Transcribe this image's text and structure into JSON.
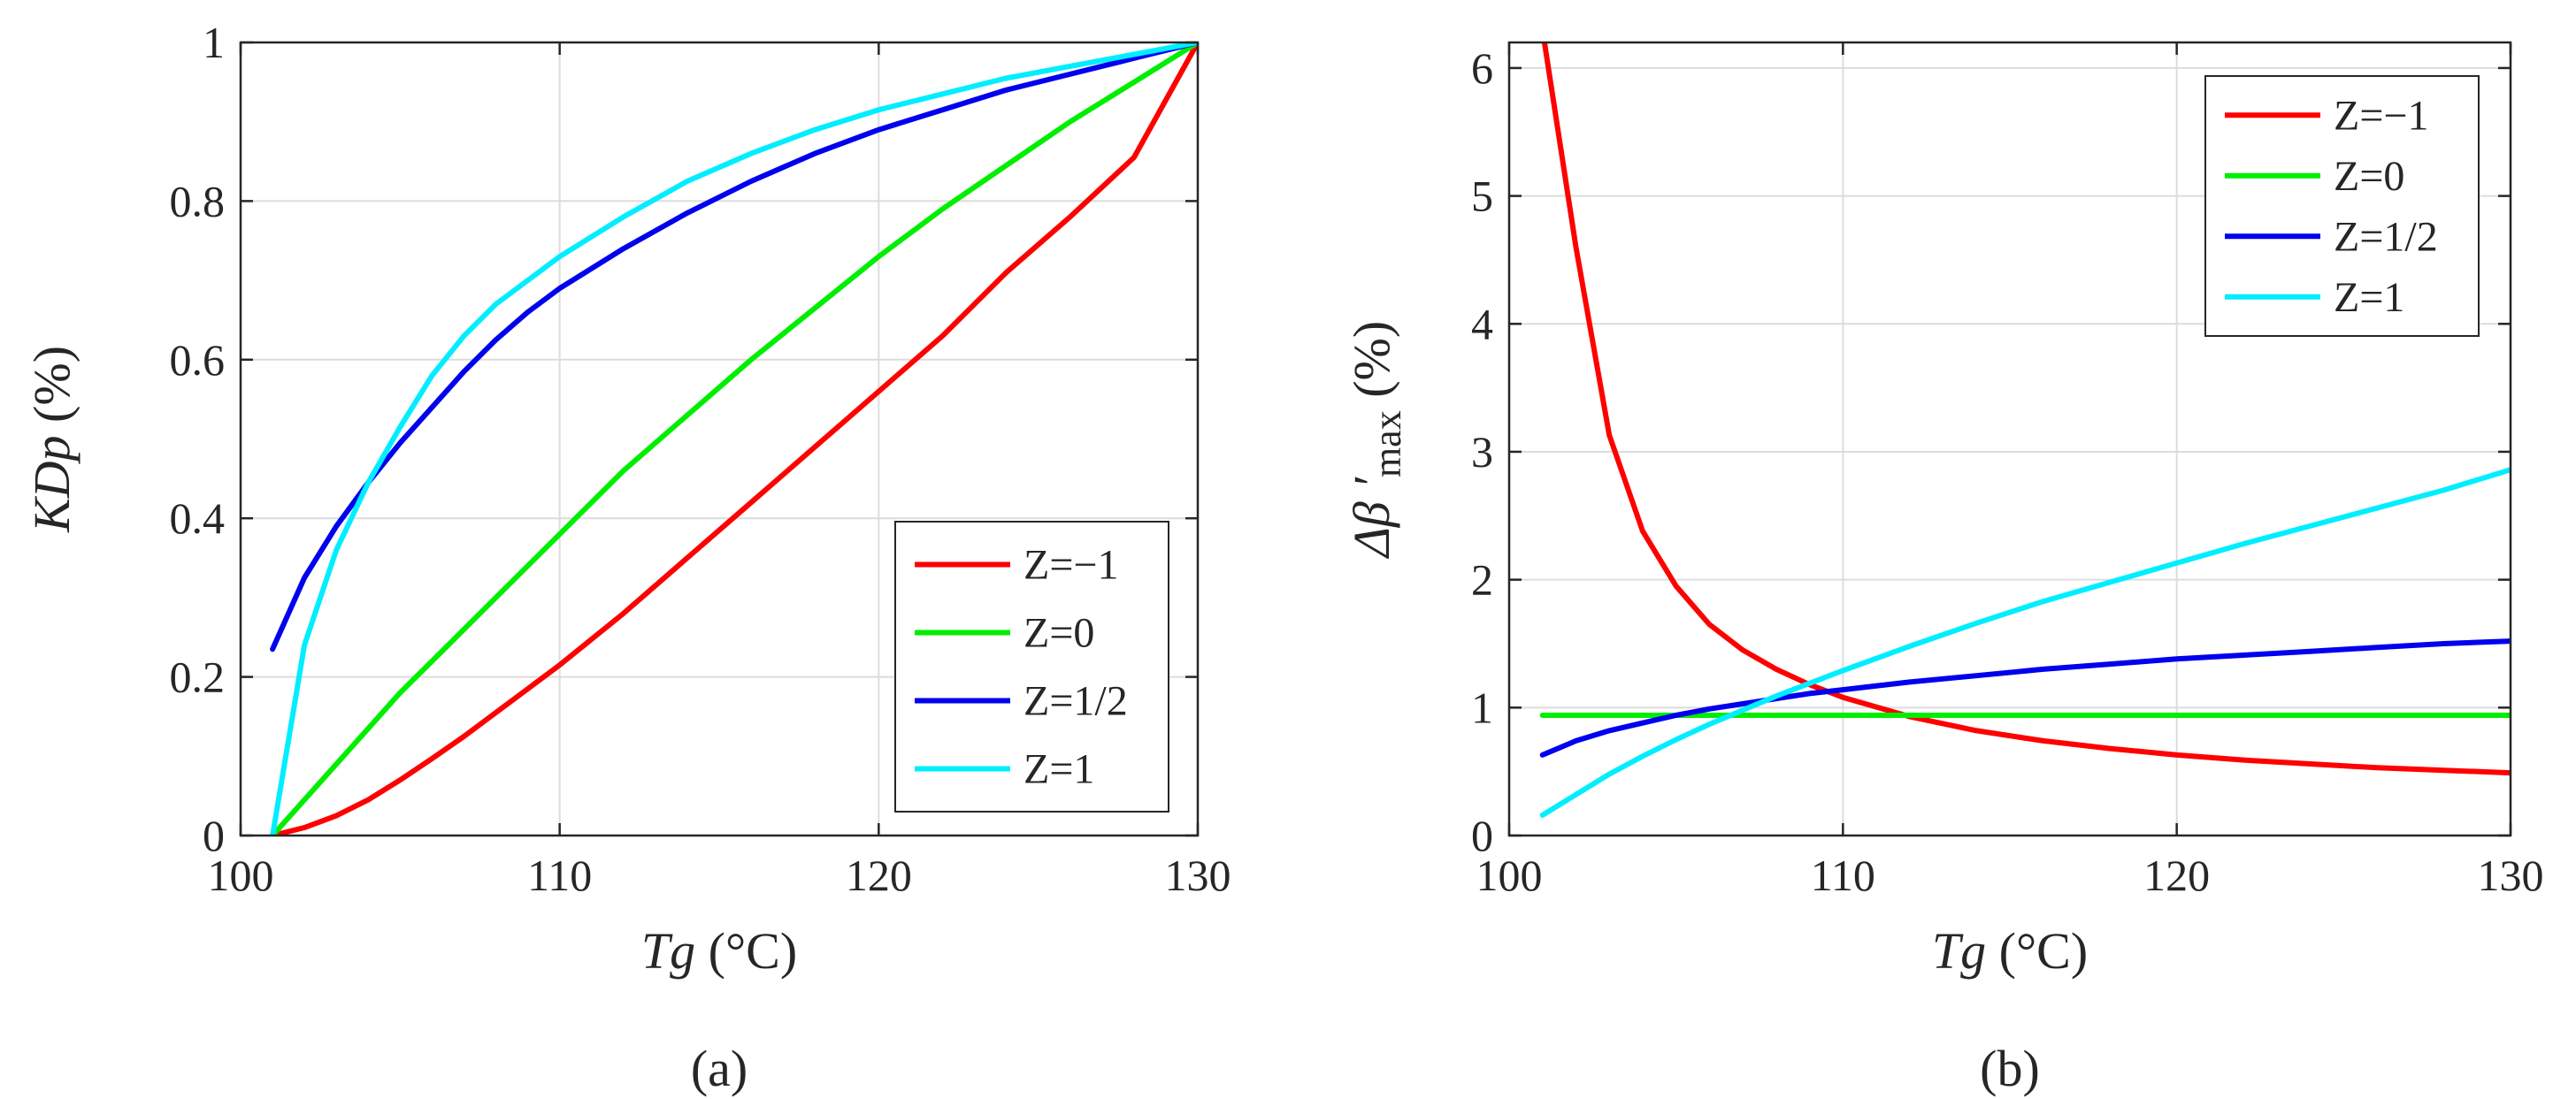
{
  "colors": {
    "red": "#ff0000",
    "green": "#00ee00",
    "blue": "#0000ee",
    "cyan": "#00eeff"
  },
  "chart_data": [
    {
      "type": "line",
      "caption": "(a)",
      "xlabel_italic": "Tg",
      "xlabel_rest": " (°C)",
      "ylabel_italic": "KDp",
      "ylabel_rest": " (%)",
      "xlim": [
        100,
        130
      ],
      "ylim": [
        0,
        1
      ],
      "xticks": [
        100,
        110,
        120,
        130
      ],
      "xtick_labels": [
        "100",
        "110",
        "120",
        "130"
      ],
      "yticks": [
        0,
        0.2,
        0.4,
        0.6,
        0.8,
        1
      ],
      "ytick_labels": [
        "0",
        "0.2",
        "0.4",
        "0.6",
        "0.8",
        "1"
      ],
      "grid": true,
      "legend_position": "bottom-right",
      "x": [
        101,
        102,
        103,
        104,
        105,
        106,
        107,
        108,
        109,
        110,
        112,
        114,
        116,
        118,
        120,
        122,
        124,
        126,
        128,
        130
      ],
      "series": [
        {
          "name": "Z=−1",
          "color": "#ff0000",
          "values": [
            0,
            0.01,
            0.025,
            0.045,
            0.07,
            0.097,
            0.125,
            0.155,
            0.185,
            0.215,
            0.28,
            0.35,
            0.42,
            0.49,
            0.56,
            0.63,
            0.71,
            0.78,
            0.855,
            1.0
          ]
        },
        {
          "name": "Z=0",
          "color": "#00ee00",
          "values": [
            0,
            0.045,
            0.09,
            0.135,
            0.18,
            0.22,
            0.26,
            0.3,
            0.34,
            0.38,
            0.46,
            0.53,
            0.6,
            0.665,
            0.73,
            0.79,
            0.845,
            0.9,
            0.95,
            1.0
          ]
        },
        {
          "name": "Z=1/2",
          "color": "#0000ee",
          "values": [
            0.235,
            0.325,
            0.39,
            0.445,
            0.495,
            0.54,
            0.585,
            0.625,
            0.66,
            0.69,
            0.74,
            0.785,
            0.825,
            0.86,
            0.89,
            0.915,
            0.94,
            0.96,
            0.98,
            1.0
          ]
        },
        {
          "name": "Z=1",
          "color": "#00eeff",
          "values": [
            0,
            0.24,
            0.36,
            0.445,
            0.515,
            0.58,
            0.63,
            0.67,
            0.7,
            0.73,
            0.78,
            0.825,
            0.86,
            0.89,
            0.915,
            0.935,
            0.955,
            0.97,
            0.985,
            1.0
          ]
        }
      ]
    },
    {
      "type": "line",
      "caption": "(b)",
      "xlabel_italic": "Tg",
      "xlabel_rest": " (°C)",
      "ylabel_prefix": "Δβ ′",
      "ylabel_sub": "max",
      "ylabel_rest": " (%)",
      "xlim": [
        100,
        130
      ],
      "ylim": [
        0,
        6.2
      ],
      "xticks": [
        100,
        110,
        120,
        130
      ],
      "xtick_labels": [
        "100",
        "110",
        "120",
        "130"
      ],
      "yticks": [
        0,
        1,
        2,
        3,
        4,
        5,
        6
      ],
      "ytick_labels": [
        "0",
        "1",
        "2",
        "3",
        "4",
        "5",
        "6"
      ],
      "grid": true,
      "legend_position": "top-right",
      "x": [
        101,
        102,
        103,
        104,
        105,
        106,
        107,
        108,
        109,
        110,
        112,
        114,
        116,
        118,
        120,
        122,
        124,
        126,
        128,
        130
      ],
      "series": [
        {
          "name": "Z=−1",
          "color": "#ff0000",
          "values": [
            6.3,
            4.6,
            3.13,
            2.38,
            1.95,
            1.65,
            1.45,
            1.3,
            1.18,
            1.08,
            0.93,
            0.82,
            0.74,
            0.68,
            0.63,
            0.59,
            0.56,
            0.53,
            0.51,
            0.49
          ]
        },
        {
          "name": "Z=0",
          "color": "#00ee00",
          "values": [
            0.94,
            0.94,
            0.94,
            0.94,
            0.94,
            0.94,
            0.94,
            0.94,
            0.94,
            0.94,
            0.94,
            0.94,
            0.94,
            0.94,
            0.94,
            0.94,
            0.94,
            0.94,
            0.94,
            0.94
          ]
        },
        {
          "name": "Z=1/2",
          "color": "#0000ee",
          "values": [
            0.63,
            0.74,
            0.82,
            0.88,
            0.94,
            0.99,
            1.03,
            1.07,
            1.11,
            1.14,
            1.2,
            1.25,
            1.3,
            1.34,
            1.38,
            1.41,
            1.44,
            1.47,
            1.5,
            1.52
          ]
        },
        {
          "name": "Z=1",
          "color": "#00eeff",
          "values": [
            0.16,
            0.32,
            0.48,
            0.62,
            0.75,
            0.87,
            0.98,
            1.09,
            1.19,
            1.29,
            1.48,
            1.66,
            1.83,
            1.98,
            2.13,
            2.28,
            2.42,
            2.56,
            2.7,
            2.86
          ]
        }
      ]
    }
  ]
}
